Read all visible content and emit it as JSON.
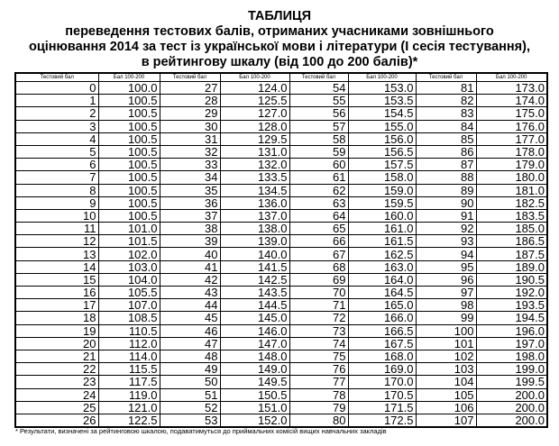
{
  "title": {
    "line1": "ТАБЛИЦЯ",
    "line2": "переведення тестових балів, отриманих учасниками зовнішнього",
    "line3": "оцінювання 2014 за тест із української мови і літератури (І сесія тестування),",
    "line4": "в рейтингову шкалу (від 100 до 200 балів)*"
  },
  "table": {
    "headers": [
      "Тестовий бал",
      "Бал 100-200",
      "Тестовий бал",
      "Бал 100-200",
      "Тестовий бал",
      "Бал 100-200",
      "Тестовий бал",
      "Бал 100-200"
    ],
    "rows": [
      [
        "0",
        "100.0",
        "27",
        "124.0",
        "54",
        "153.0",
        "81",
        "173.0"
      ],
      [
        "1",
        "100.5",
        "28",
        "125.5",
        "55",
        "153.5",
        "82",
        "174.0"
      ],
      [
        "2",
        "100.5",
        "29",
        "127.0",
        "56",
        "154.5",
        "83",
        "175.0"
      ],
      [
        "3",
        "100.5",
        "30",
        "128.0",
        "57",
        "155.0",
        "84",
        "176.0"
      ],
      [
        "4",
        "100.5",
        "31",
        "129.5",
        "58",
        "156.0",
        "85",
        "177.0"
      ],
      [
        "5",
        "100.5",
        "32",
        "131.0",
        "59",
        "156.5",
        "86",
        "178.0"
      ],
      [
        "6",
        "100.5",
        "33",
        "132.0",
        "60",
        "157.5",
        "87",
        "179.0"
      ],
      [
        "7",
        "100.5",
        "34",
        "133.5",
        "61",
        "158.0",
        "88",
        "180.0"
      ],
      [
        "8",
        "100.5",
        "35",
        "134.5",
        "62",
        "159.0",
        "89",
        "181.0"
      ],
      [
        "9",
        "100.5",
        "36",
        "136.0",
        "63",
        "159.5",
        "90",
        "182.5"
      ],
      [
        "10",
        "100.5",
        "37",
        "137.0",
        "64",
        "160.0",
        "91",
        "183.5"
      ],
      [
        "11",
        "101.0",
        "38",
        "138.0",
        "65",
        "161.0",
        "92",
        "185.0"
      ],
      [
        "12",
        "101.5",
        "39",
        "139.0",
        "66",
        "161.5",
        "93",
        "186.5"
      ],
      [
        "13",
        "102.0",
        "40",
        "140.0",
        "67",
        "162.5",
        "94",
        "187.5"
      ],
      [
        "14",
        "103.0",
        "41",
        "141.5",
        "68",
        "163.0",
        "95",
        "189.0"
      ],
      [
        "15",
        "104.0",
        "42",
        "142.5",
        "69",
        "164.0",
        "96",
        "190.5"
      ],
      [
        "16",
        "105.5",
        "43",
        "143.5",
        "70",
        "164.5",
        "97",
        "192.0"
      ],
      [
        "17",
        "107.0",
        "44",
        "144.5",
        "71",
        "165.0",
        "98",
        "193.5"
      ],
      [
        "18",
        "108.5",
        "45",
        "145.0",
        "72",
        "166.0",
        "99",
        "194.5"
      ],
      [
        "19",
        "110.5",
        "46",
        "146.0",
        "73",
        "166.5",
        "100",
        "196.0"
      ],
      [
        "20",
        "112.0",
        "47",
        "147.0",
        "74",
        "167.5",
        "101",
        "197.0"
      ],
      [
        "21",
        "114.0",
        "48",
        "148.0",
        "75",
        "168.0",
        "102",
        "198.0"
      ],
      [
        "22",
        "115.5",
        "49",
        "149.0",
        "76",
        "169.0",
        "103",
        "199.0"
      ],
      [
        "23",
        "117.5",
        "50",
        "149.5",
        "77",
        "170.0",
        "104",
        "199.5"
      ],
      [
        "24",
        "119.0",
        "51",
        "150.5",
        "78",
        "170.5",
        "105",
        "200.0"
      ],
      [
        "25",
        "121.0",
        "52",
        "151.0",
        "79",
        "171.5",
        "106",
        "200.0"
      ],
      [
        "26",
        "122.5",
        "53",
        "152.0",
        "80",
        "172.5",
        "107",
        "200.0"
      ]
    ]
  },
  "footnote": "* Результати, визначені за рейтинговою шкалою, подаватимуться до приймальних комісій вищих навчальних закладів"
}
